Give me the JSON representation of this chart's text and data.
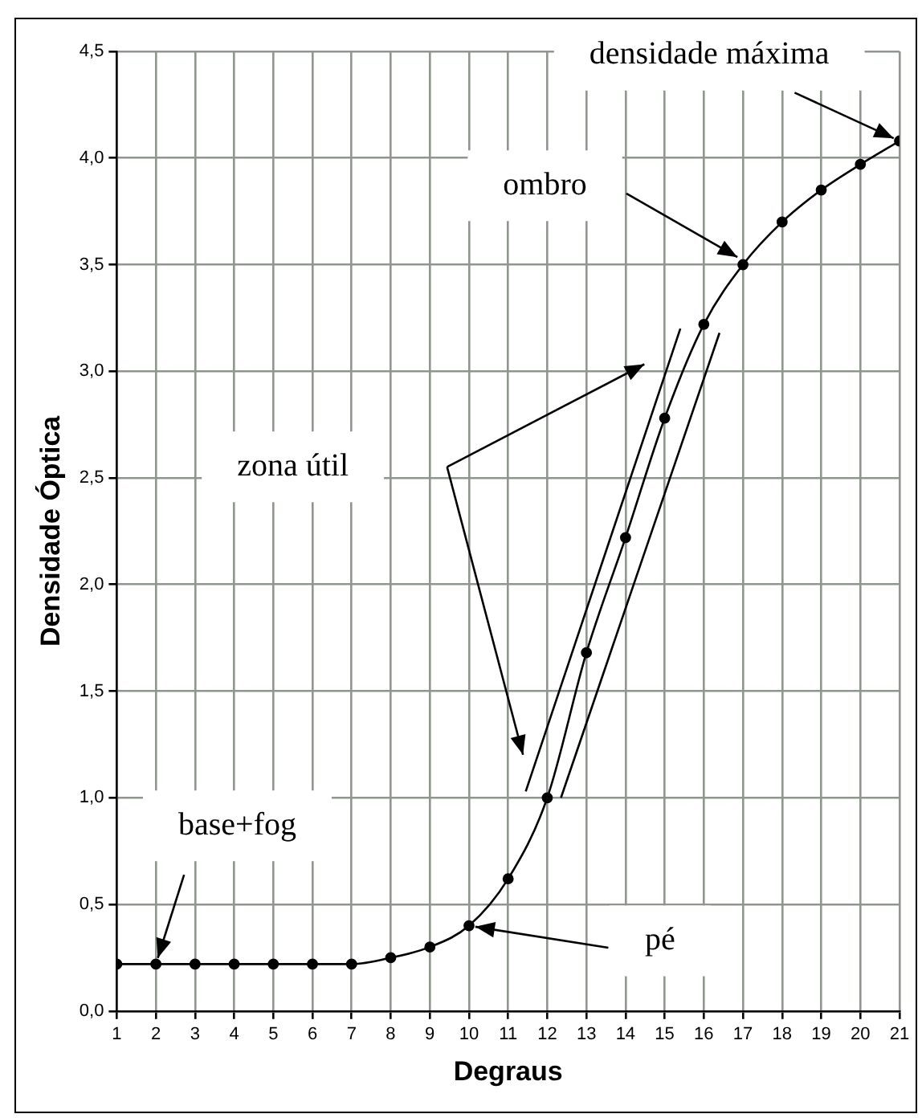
{
  "chart_data": {
    "type": "line",
    "xlabel": "Degraus",
    "ylabel": "Densidade Óptica",
    "x": [
      1,
      2,
      3,
      4,
      5,
      6,
      7,
      8,
      9,
      10,
      11,
      12,
      13,
      14,
      15,
      16,
      17,
      18,
      19,
      20,
      21
    ],
    "series": [
      {
        "color": "#000000",
        "values": [
          0.22,
          0.22,
          0.22,
          0.22,
          0.22,
          0.22,
          0.22,
          0.25,
          0.3,
          0.4,
          0.62,
          1.0,
          1.68,
          2.22,
          2.78,
          3.22,
          3.5,
          3.7,
          3.85,
          3.97,
          4.08
        ],
        "marker": "circle"
      },
      {
        "type": "line",
        "color": "#000000",
        "x": [
          11.45,
          15.4
        ],
        "values": [
          1.03,
          3.2
        ],
        "marker": "none"
      },
      {
        "type": "line",
        "color": "#000000",
        "x": [
          12.35,
          16.4
        ],
        "values": [
          1.0,
          3.18
        ],
        "marker": "none"
      }
    ],
    "xlim": [
      1,
      21
    ],
    "xticks": [
      1,
      2,
      3,
      4,
      5,
      6,
      7,
      8,
      9,
      10,
      11,
      12,
      13,
      14,
      15,
      16,
      17,
      18,
      19,
      20,
      21
    ],
    "ylim": [
      0,
      4.5
    ],
    "yticks": [
      {
        "value": 0,
        "label": "0,0"
      },
      {
        "value": 0.5,
        "label": "0,5"
      },
      {
        "value": 1,
        "label": "1,0"
      },
      {
        "value": 1.5,
        "label": "1,5"
      },
      {
        "value": 2,
        "label": "2,0"
      },
      {
        "value": 2.5,
        "label": "2,5"
      },
      {
        "value": 3,
        "label": "3,0"
      },
      {
        "value": 3.5,
        "label": "3,5"
      },
      {
        "value": 4,
        "label": "4,0"
      },
      {
        "value": 4.5,
        "label": "4,5"
      }
    ],
    "grid": true,
    "legend": false,
    "line_style": "solid",
    "annotations": [
      {
        "text": "densidade máxima",
        "x": 21,
        "y": 4.08
      },
      {
        "text": "ombro",
        "x": 17,
        "y": 3.52
      },
      "zona útil",
      {
        "text": "base+fog",
        "x": 2,
        "y": 0.22
      },
      {
        "text": "pé",
        "x": 10,
        "y": 0.4
      }
    ]
  }
}
